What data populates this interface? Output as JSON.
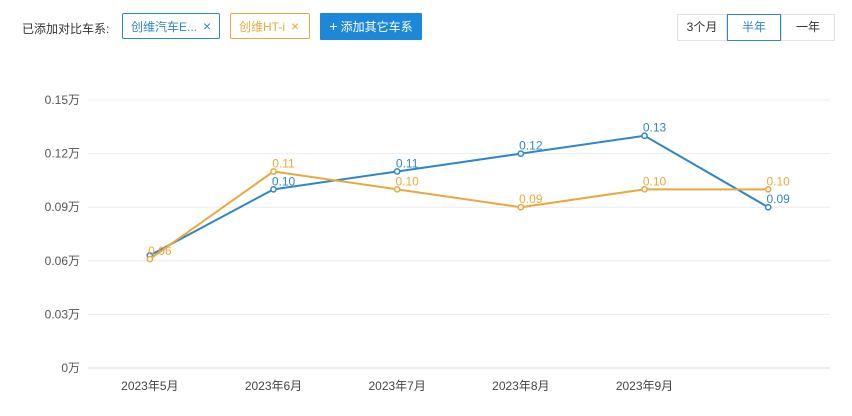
{
  "toolbar": {
    "compare_label": "已添加对比车系:",
    "tags": [
      {
        "label": "创维汽车E...",
        "color": "#2f86c9"
      },
      {
        "label": "创维HT-i",
        "color": "#e8a93a"
      }
    ],
    "close_glyph": "×",
    "add_button": {
      "icon": "plus-icon",
      "label": "添加其它车系"
    },
    "range_options": [
      "3个月",
      "半年",
      "一年"
    ],
    "range_selected": "半年"
  },
  "chart_data": {
    "type": "line",
    "categories": [
      "2023年5月",
      "2023年6月",
      "2023年7月",
      "2023年8月",
      "2023年9月",
      ""
    ],
    "y_ticks": [
      "0万",
      "0.03万",
      "0.06万",
      "0.09万",
      "0.12万",
      "0.15万"
    ],
    "ylim": [
      0,
      0.15
    ],
    "grid": true,
    "series": [
      {
        "color": "#2f86c9",
        "values": [
          0.063,
          0.1,
          0.11,
          0.12,
          0.13,
          0.09
        ],
        "labels": [
          "",
          "0.10",
          "0.11",
          "0.12",
          "0.13",
          "0.09"
        ]
      },
      {
        "color": "#e8a93a",
        "values": [
          0.061,
          0.11,
          0.1,
          0.09,
          0.1,
          0.1
        ],
        "labels": [
          "0.06",
          "0.11",
          "0.10",
          "0.09",
          "0.10",
          "0.10"
        ]
      }
    ]
  }
}
